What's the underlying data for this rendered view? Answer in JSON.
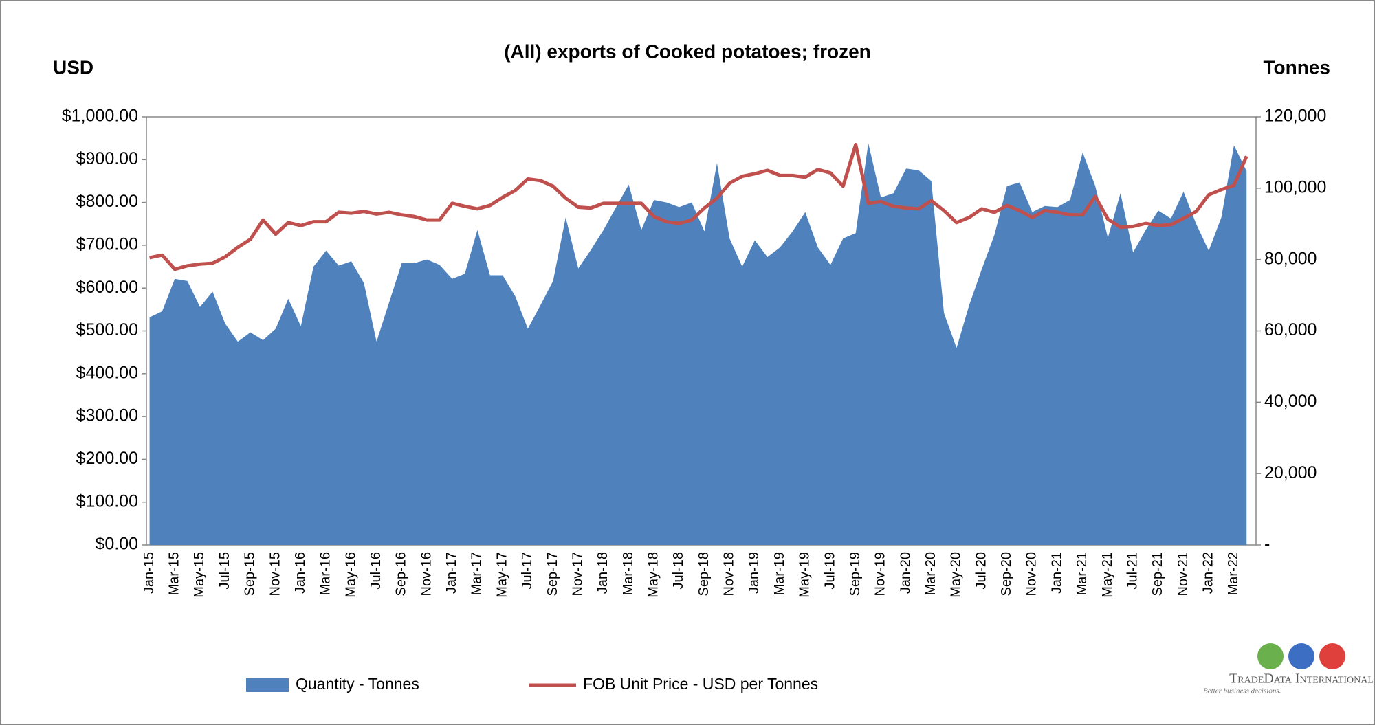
{
  "chart_data": {
    "type": "area_line",
    "title": "(All) exports of Cooked potatoes; frozen",
    "y_label": "USD",
    "y2_label": "Tonnes",
    "categories": [
      "Jan-15",
      null,
      "Mar-15",
      null,
      "May-15",
      null,
      "Jul-15",
      null,
      "Sep-15",
      null,
      "Nov-15",
      null,
      "Jan-16",
      null,
      "Mar-16",
      null,
      "May-16",
      null,
      "Jul-16",
      null,
      "Sep-16",
      null,
      "Nov-16",
      null,
      "Jan-17",
      null,
      "Mar-17",
      null,
      "May-17",
      null,
      "Jul-17",
      null,
      "Sep-17",
      null,
      "Nov-17",
      null,
      "Jan-18",
      null,
      "Mar-18",
      null,
      "May-18",
      null,
      "Jul-18",
      null,
      "Sep-18",
      null,
      "Nov-18",
      null,
      "Jan-19",
      null,
      "Mar-19",
      null,
      "May-19",
      null,
      "Jul-19",
      null,
      "Sep-19",
      null,
      "Nov-19",
      null,
      "Jan-20",
      null,
      "Mar-20",
      null,
      "May-20",
      null,
      "Jul-20",
      null,
      "Sep-20",
      null,
      "Nov-20",
      null,
      "Jan-21",
      null,
      "Mar-21",
      null,
      "May-21",
      null,
      "Jul-21",
      null,
      "Sep-21",
      null,
      "Nov-21",
      null,
      "Jan-22",
      null,
      "Mar-22",
      null
    ],
    "series": [
      {
        "name": "Quantity - Tonnes",
        "kind": "area",
        "axis": "y2",
        "color": "#4f81bd",
        "values": [
          63800,
          65500,
          74600,
          74000,
          66700,
          71000,
          62000,
          57000,
          59600,
          57400,
          60600,
          69000,
          61300,
          78000,
          82500,
          78300,
          79500,
          73400,
          57000,
          68000,
          79000,
          79000,
          80000,
          78500,
          74600,
          76000,
          88300,
          75600,
          75600,
          69700,
          60600,
          67200,
          74000,
          91800,
          77500,
          82700,
          88300,
          94700,
          101000,
          88300,
          96700,
          96000,
          94700,
          96000,
          87900,
          107000,
          85900,
          78000,
          85400,
          80700,
          83400,
          87900,
          93300,
          83400,
          78500,
          85900,
          87400,
          112600,
          97400,
          98600,
          105500,
          105000,
          102000,
          65000,
          55200,
          67200,
          77300,
          86900,
          100600,
          101600,
          93300,
          95000,
          94700,
          96700,
          110000,
          100600,
          86100,
          98600,
          82000,
          88300,
          93700,
          91500,
          99000,
          90000,
          82500,
          91800,
          112000,
          104800
        ]
      },
      {
        "name": "FOB Unit Price - USD per Tonnes",
        "kind": "line",
        "color": "#c0504d",
        "values": [
          671,
          677,
          644,
          652,
          656,
          658,
          673,
          695,
          714,
          759,
          726,
          753,
          746,
          755,
          755,
          777,
          775,
          779,
          773,
          777,
          771,
          767,
          759,
          759,
          798,
          791,
          785,
          793,
          812,
          828,
          855,
          851,
          838,
          810,
          789,
          787,
          798,
          798,
          798,
          798,
          767,
          755,
          751,
          759,
          787,
          810,
          845,
          861,
          867,
          875,
          863,
          863,
          859,
          877,
          869,
          838,
          935,
          798,
          802,
          791,
          787,
          785,
          804,
          781,
          753,
          765,
          785,
          777,
          793,
          781,
          765,
          781,
          777,
          771,
          771,
          814,
          761,
          742,
          744,
          751,
          746,
          748,
          763,
          779,
          818,
          830,
          840,
          908
        ]
      }
    ],
    "ylim": [
      0,
      1000
    ],
    "yticks": [
      {
        "value": 0,
        "label": "$0.00"
      },
      {
        "value": 100,
        "label": "$100.00"
      },
      {
        "value": 200,
        "label": "$200.00"
      },
      {
        "value": 300,
        "label": "$300.00"
      },
      {
        "value": 400,
        "label": "$400.00"
      },
      {
        "value": 500,
        "label": "$500.00"
      },
      {
        "value": 600,
        "label": "$600.00"
      },
      {
        "value": 700,
        "label": "$700.00"
      },
      {
        "value": 800,
        "label": "$800.00"
      },
      {
        "value": 900,
        "label": "$900.00"
      },
      {
        "value": 1000,
        "label": "$1,000.00"
      }
    ],
    "y2lim": [
      0,
      120000
    ],
    "y2ticks": [
      {
        "value": 0,
        "label": "-"
      },
      {
        "value": 20000,
        "label": "20,000"
      },
      {
        "value": 40000,
        "label": "40,000"
      },
      {
        "value": 60000,
        "label": "60,000"
      },
      {
        "value": 80000,
        "label": "80,000"
      },
      {
        "value": 100000,
        "label": "100,000"
      },
      {
        "value": 120000,
        "label": "120,000"
      }
    ],
    "legend": "bottom",
    "logo": {
      "name": "TradeData International",
      "tagline": "Better business decisions."
    }
  }
}
